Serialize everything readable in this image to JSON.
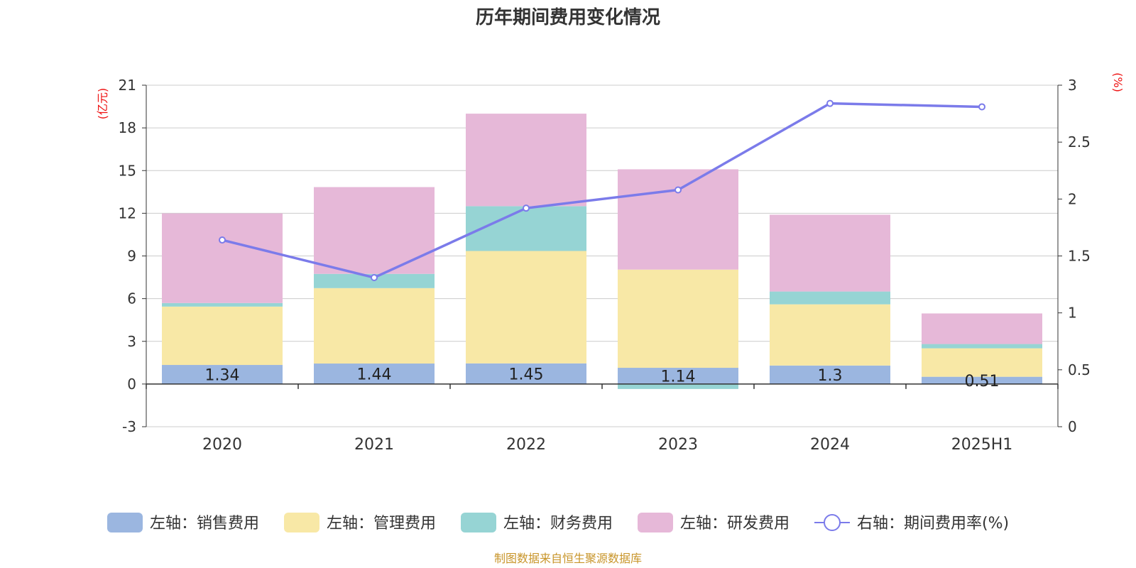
{
  "chart_data": {
    "type": "bar",
    "title": "历年期间费用变化情况",
    "categories": [
      "2020",
      "2021",
      "2022",
      "2023",
      "2024",
      "2025H1"
    ],
    "left_axis": {
      "unit": "(亿元)",
      "ylim": [
        -3,
        21
      ],
      "ticks": [
        -3,
        0,
        3,
        6,
        9,
        12,
        15,
        18,
        21
      ]
    },
    "right_axis": {
      "unit": "(%)",
      "ylim": [
        0,
        3
      ],
      "ticks": [
        "0",
        "0.5",
        "1",
        "1.5",
        "2",
        "2.5",
        "3"
      ]
    },
    "series": [
      {
        "name": "左轴：销售费用",
        "kind": "bar",
        "color": "#9bb6e0",
        "values": [
          1.34,
          1.44,
          1.45,
          1.14,
          1.3,
          0.51
        ],
        "labels": [
          "1.34",
          "1.44",
          "1.45",
          "1.14",
          "1.3",
          "0.51"
        ]
      },
      {
        "name": "左轴：管理费用",
        "kind": "bar",
        "color": "#f8e8a6",
        "values": [
          4.1,
          5.3,
          7.9,
          6.9,
          4.3,
          2.0
        ]
      },
      {
        "name": "左轴：财务费用",
        "kind": "bar",
        "color": "#96d4d4",
        "values": [
          0.25,
          1.0,
          3.15,
          -0.35,
          0.9,
          0.3
        ]
      },
      {
        "name": "左轴：研发费用",
        "kind": "bar",
        "color": "#e6b8d8",
        "values": [
          6.3,
          6.1,
          6.5,
          7.05,
          5.4,
          2.15
        ]
      },
      {
        "name": "右轴：期间费用率(%)",
        "kind": "line",
        "color": "#7b7bea",
        "values": [
          1.64,
          1.31,
          1.92,
          2.08,
          2.84,
          2.81
        ]
      }
    ],
    "grid": true,
    "legend_position": "bottom"
  },
  "footer": {
    "source": "制图数据来自恒生聚源数据库",
    "source_color": "#c8952a"
  },
  "colors": {
    "unit_red": "#ee1111",
    "grid": "#cccccc",
    "axis": "#333333"
  }
}
